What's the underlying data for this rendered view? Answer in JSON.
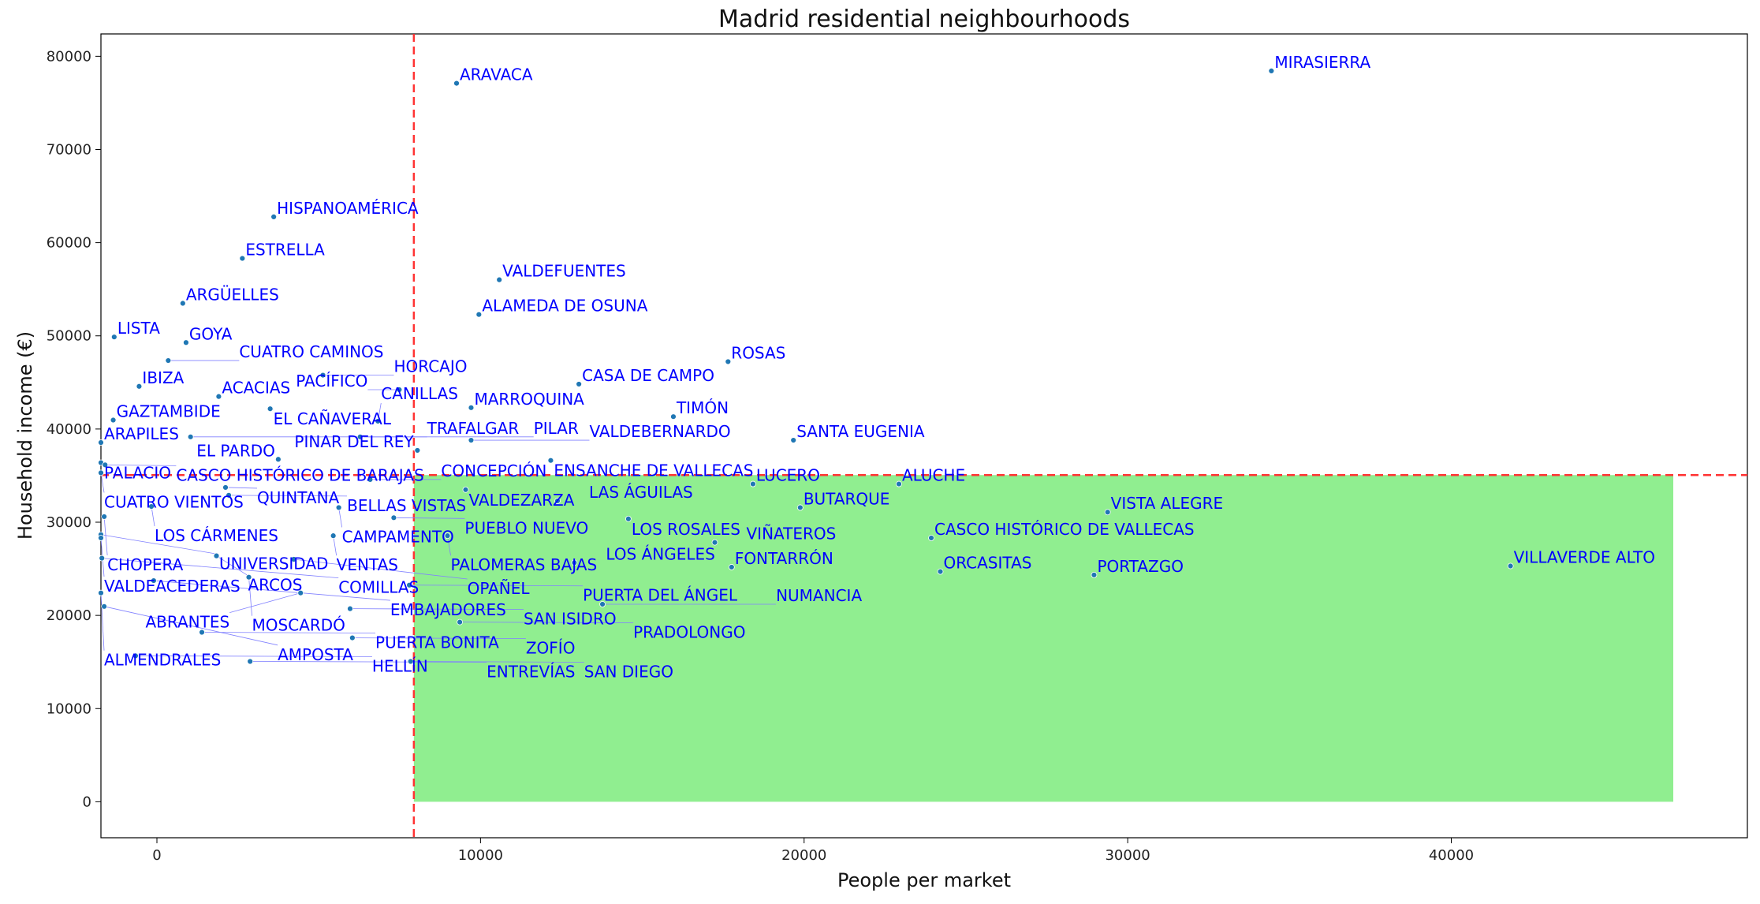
{
  "chart_data": {
    "type": "scatter",
    "title": "Madrid residential neighbourhoods",
    "xlabel": "People per market",
    "ylabel": "Household income (€)",
    "xlim": [
      -1730,
      49150
    ],
    "ylim": [
      -3860,
      82400
    ],
    "xticks": [
      0,
      10000,
      20000,
      30000,
      40000
    ],
    "yticks": [
      0,
      10000,
      20000,
      30000,
      40000,
      50000,
      60000,
      70000,
      80000
    ],
    "grid": false,
    "point_color": "#1f77b4",
    "label_color": "#0000ff",
    "reference_lines": {
      "x": 7940,
      "y": 35060,
      "color": "#ff3333"
    },
    "highlight_region": {
      "x": [
        7940,
        46860
      ],
      "y": [
        0,
        35060
      ],
      "color": "#90ee90"
    },
    "points": [
      [
        "MIRASIERRA",
        34440,
        78430
      ],
      [
        "ARAVACA",
        9260,
        77100
      ],
      [
        "HISPANOAMÉRICA",
        3610,
        62770
      ],
      [
        "ESTRELLA",
        2640,
        58310
      ],
      [
        "VALDEFUENTES",
        10580,
        56020
      ],
      [
        "ARGÜELLES",
        800,
        53490
      ],
      [
        "ALAMEDA DE OSUNA",
        9950,
        52290
      ],
      [
        "LISTA",
        -1320,
        49880
      ],
      [
        "GOYA",
        900,
        49280
      ],
      [
        "CUATRO CAMINOS",
        350,
        47350
      ],
      [
        "ROSAS",
        17650,
        47230
      ],
      [
        "HORCAJO",
        5130,
        45780
      ],
      [
        "CASA DE CAMPO",
        13040,
        44820
      ],
      [
        "IBIZA",
        -550,
        44580
      ],
      [
        "PACÍFICO",
        7490,
        44220
      ],
      [
        "ACACIAS",
        1910,
        43490
      ],
      [
        "MARROQUINA",
        9710,
        42290
      ],
      [
        "EL CAÑAVERAL",
        3500,
        42170
      ],
      [
        "TIMÓN",
        15960,
        41330
      ],
      [
        "GAZTAMBIDE",
        -1350,
        40960
      ],
      [
        "CANILLAS",
        6830,
        40840
      ],
      [
        "TRAFALGAR",
        1040,
        39160
      ],
      [
        "PILAR",
        6280,
        39160
      ],
      [
        "VALDEBERNARDO",
        9710,
        38800
      ],
      [
        "SANTA EUGENIA",
        19670,
        38800
      ],
      [
        "ARAPILES",
        -1730,
        38550
      ],
      [
        "PINAR DEL REY",
        8050,
        37710
      ],
      [
        "EL PARDO",
        3750,
        36750
      ],
      [
        "ENSANCHE DE VALLECAS",
        12170,
        36630
      ],
      [
        "PALACIO",
        -1730,
        36390
      ],
      [
        "CASCO HISTÓRICO DE BARAJAS",
        -1600,
        36150
      ],
      [
        "CUATRO VIENTOS",
        -1730,
        35300
      ],
      [
        "CONCEPCIÓN",
        6590,
        34580
      ],
      [
        "LUCERO",
        18420,
        34100
      ],
      [
        "ALUCHE",
        22930,
        34100
      ],
      [
        "QUINTANA",
        2120,
        33730
      ],
      [
        "VALDEZARZA",
        9540,
        33490
      ],
      [
        "BELLAS VISTAS",
        2220,
        32890
      ],
      [
        "LAS ÁGUILAS",
        12380,
        32290
      ],
      [
        "LOS CÁRMENES",
        -170,
        31690
      ],
      [
        "CAMPAMENTO",
        5620,
        31570
      ],
      [
        "BUTARQUE",
        19880,
        31570
      ],
      [
        "VISTA ALEGRE",
        29380,
        31080
      ],
      [
        "CHOPERA",
        -1630,
        30600
      ],
      [
        "PUEBLO NUEVO",
        7320,
        30480
      ],
      [
        "LOS ROSALES",
        14570,
        30360
      ],
      [
        "UNIVERSIDAD",
        -1730,
        28670
      ],
      [
        "VENTAS",
        5450,
        28550
      ],
      [
        "PALOMERAS BAJAS",
        8980,
        28550
      ],
      [
        "VALDEACEDERAS",
        -1730,
        28310
      ],
      [
        "CASCO HISTÓRICO DE VALLECAS",
        23930,
        28310
      ],
      [
        "VIÑATEROS",
        17240,
        27830
      ],
      [
        "ARCOS",
        1840,
        26390
      ],
      [
        "COMILLAS",
        -1700,
        26140
      ],
      [
        "OPAÑEL",
        4230,
        26020
      ],
      [
        "LOS ÁNGELES",
        12900,
        25660
      ],
      [
        "VILLAVERDE ALTO",
        41830,
        25300
      ],
      [
        "FONTARRÓN",
        17760,
        25180
      ],
      [
        "ORCASITAS",
        24210,
        24700
      ],
      [
        "PORTAZGO",
        28960,
        24340
      ],
      [
        "MOSCARDÓ",
        2840,
        24100
      ],
      [
        "EMBAJADORES",
        -100,
        23730
      ],
      [
        "PUERTA DEL ÁNGEL",
        7800,
        23250
      ],
      [
        "ABRANTES",
        4440,
        22410
      ],
      [
        "ALMENDRALES",
        -1730,
        22410
      ],
      [
        "NUMANCIA",
        13770,
        21200
      ],
      [
        "AMPOSTA",
        -1630,
        20960
      ],
      [
        "SAN ISIDRO",
        5970,
        20720
      ],
      [
        "PRADOLONGO",
        9360,
        19280
      ],
      [
        "PUERTA BONITA",
        1390,
        18190
      ],
      [
        "ZOFÍO",
        6040,
        17590
      ],
      [
        "HELLÍN",
        -660,
        15660
      ],
      [
        "ENTREVÍAS",
        2880,
        15060
      ],
      [
        "SAN DIEGO",
        7840,
        15060
      ]
    ]
  }
}
